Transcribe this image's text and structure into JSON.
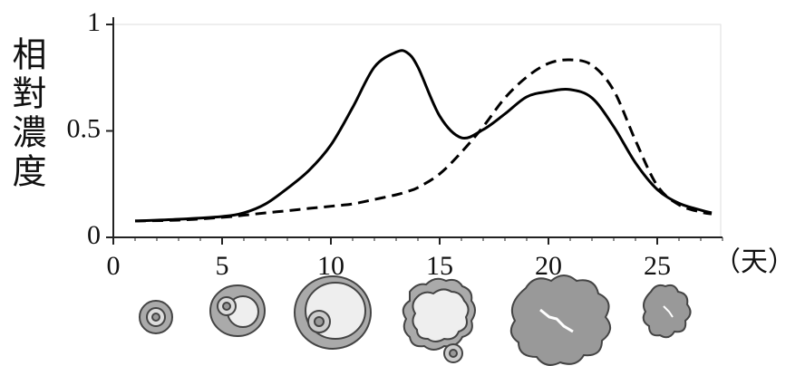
{
  "chart_data": {
    "type": "line",
    "ylabel": "相對濃度",
    "xlabel": "（天）",
    "x": [
      1,
      3,
      5,
      6,
      7,
      8,
      9,
      10,
      11,
      12,
      13,
      13.5,
      14,
      15,
      16,
      17,
      18,
      19,
      20,
      21,
      22,
      23,
      24,
      25,
      26,
      27,
      27.5
    ],
    "series": [
      {
        "style": "solid",
        "color": "#000000",
        "values": [
          0.077,
          0.085,
          0.098,
          0.115,
          0.157,
          0.23,
          0.315,
          0.434,
          0.61,
          0.8,
          0.87,
          0.868,
          0.8,
          0.57,
          0.468,
          0.506,
          0.58,
          0.66,
          0.685,
          0.694,
          0.655,
          0.52,
          0.35,
          0.225,
          0.16,
          0.128,
          0.115
        ]
      },
      {
        "style": "dashed",
        "color": "#000000",
        "values": [
          0.077,
          0.081,
          0.094,
          0.104,
          0.115,
          0.125,
          0.136,
          0.146,
          0.157,
          0.178,
          0.2,
          0.215,
          0.234,
          0.298,
          0.4,
          0.52,
          0.655,
          0.753,
          0.817,
          0.834,
          0.809,
          0.69,
          0.455,
          0.243,
          0.153,
          0.119,
          0.11
        ]
      }
    ],
    "xlim": [
      0,
      28
    ],
    "xticks": [
      0,
      5,
      10,
      15,
      20,
      25
    ],
    "ylim": [
      0,
      1
    ],
    "yticks": [
      0,
      0.5,
      1
    ]
  }
}
